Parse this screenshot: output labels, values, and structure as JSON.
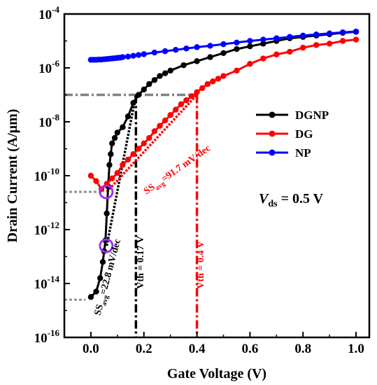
{
  "chart_data": {
    "type": "line",
    "xlabel": "Gate Voltage (V)",
    "ylabel": "Drain Current (A/μm)",
    "xlim": [
      -0.1,
      1.05
    ],
    "ylim_exp": [
      -16,
      -4
    ],
    "y_scale": "log",
    "x_ticks": [
      0.0,
      0.2,
      0.4,
      0.6,
      0.8,
      1.0
    ],
    "x_tick_labels": [
      "0.0",
      "0.2",
      "0.4",
      "0.6",
      "0.8",
      "1.0"
    ],
    "y_tick_exponents": [
      -4,
      -6,
      -8,
      -10,
      -12,
      -14,
      -16
    ],
    "y_tick_base": "10",
    "legend_position": "right",
    "series": [
      {
        "name": "DGNP",
        "color": "#000000",
        "x": [
          0.0,
          0.02,
          0.035,
          0.045,
          0.05,
          0.055,
          0.06,
          0.065,
          0.07,
          0.075,
          0.08,
          0.09,
          0.1,
          0.12,
          0.14,
          0.16,
          0.18,
          0.2,
          0.22,
          0.24,
          0.26,
          0.28,
          0.3,
          0.35,
          0.4,
          0.45,
          0.5,
          0.55,
          0.6,
          0.65,
          0.7,
          0.75,
          0.8,
          0.85,
          0.9,
          0.95,
          1.0
        ],
        "log10_y": [
          -14.5,
          -14.3,
          -13.8,
          -13.2,
          -12.8,
          -12.4,
          -11.4,
          -10.4,
          -9.6,
          -9.2,
          -8.8,
          -8.6,
          -8.4,
          -8.2,
          -7.8,
          -7.3,
          -7.0,
          -6.8,
          -6.6,
          -6.45,
          -6.3,
          -6.2,
          -6.1,
          -5.9,
          -5.75,
          -5.6,
          -5.45,
          -5.3,
          -5.2,
          -5.1,
          -5.0,
          -4.9,
          -4.85,
          -4.8,
          -4.75,
          -4.7,
          -4.66
        ]
      },
      {
        "name": "DG",
        "color": "#ff0000",
        "x": [
          0.0,
          0.02,
          0.04,
          0.06,
          0.08,
          0.1,
          0.12,
          0.14,
          0.16,
          0.18,
          0.2,
          0.22,
          0.24,
          0.26,
          0.28,
          0.3,
          0.32,
          0.34,
          0.36,
          0.38,
          0.4,
          0.42,
          0.44,
          0.46,
          0.48,
          0.5,
          0.55,
          0.6,
          0.65,
          0.7,
          0.75,
          0.8,
          0.85,
          0.9,
          0.95,
          1.0
        ],
        "log10_y": [
          -10.0,
          -10.2,
          -10.5,
          -10.3,
          -10.1,
          -9.9,
          -9.6,
          -9.4,
          -9.2,
          -9.0,
          -8.8,
          -8.6,
          -8.35,
          -8.15,
          -7.95,
          -7.75,
          -7.55,
          -7.35,
          -7.2,
          -7.05,
          -6.9,
          -6.75,
          -6.6,
          -6.5,
          -6.4,
          -6.3,
          -6.1,
          -5.85,
          -5.65,
          -5.5,
          -5.4,
          -5.25,
          -5.15,
          -5.1,
          -5.0,
          -4.95
        ]
      },
      {
        "name": "NP",
        "color": "#0000ff",
        "x": [
          0.0,
          0.01,
          0.02,
          0.03,
          0.04,
          0.05,
          0.06,
          0.07,
          0.08,
          0.09,
          0.1,
          0.11,
          0.12,
          0.14,
          0.16,
          0.18,
          0.2,
          0.24,
          0.28,
          0.32,
          0.36,
          0.4,
          0.45,
          0.5,
          0.55,
          0.6,
          0.65,
          0.7,
          0.75,
          0.8,
          0.85,
          0.9,
          0.95,
          1.0
        ],
        "log10_y": [
          -5.7,
          -5.7,
          -5.7,
          -5.69,
          -5.69,
          -5.68,
          -5.67,
          -5.66,
          -5.65,
          -5.64,
          -5.63,
          -5.62,
          -5.6,
          -5.58,
          -5.55,
          -5.52,
          -5.49,
          -5.43,
          -5.38,
          -5.33,
          -5.28,
          -5.23,
          -5.18,
          -5.12,
          -5.06,
          -5.0,
          -4.95,
          -4.9,
          -4.85,
          -4.8,
          -4.76,
          -4.72,
          -4.68,
          -4.65
        ]
      }
    ],
    "annotations": {
      "vth_dgnp_label": "Vth = 0.17 V",
      "vth_dg_label": "Vth = 0.4 V",
      "ss_dgnp_text": "SS",
      "ss_dgnp_sub": "avg",
      "ss_dgnp_value": "=22.8 mV/dec",
      "ss_dg_text": "SS",
      "ss_dg_sub": "avg",
      "ss_dg_value": "=91.7 mV/dec",
      "vds_italic": "V",
      "vds_sub": "ds",
      "vds_value": " = 0.5 V",
      "vth_dgnp_x": 0.17,
      "vth_dg_x": 0.4,
      "vth_current_log10": -7.0
    }
  }
}
